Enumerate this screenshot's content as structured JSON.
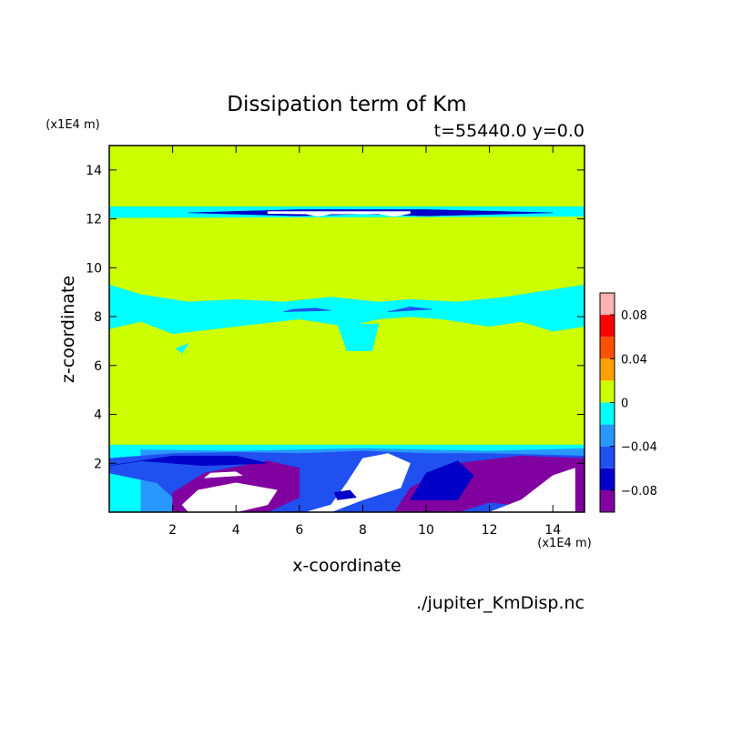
{
  "chart_data": {
    "type": "contour",
    "title": "Dissipation term of Km",
    "subtitle": "t=55440.0 y=0.0",
    "x_label": "x-coordinate",
    "y_label": "z-coordinate",
    "x_unit": "(x1E4 m)",
    "y_unit": "(x1E4 m)",
    "source": "./jupiter_KmDisp.nc",
    "xlim": [
      0,
      15
    ],
    "ylim": [
      0,
      15
    ],
    "xticks": [
      2,
      4,
      6,
      8,
      10,
      12,
      14
    ],
    "yticks": [
      2,
      4,
      6,
      8,
      10,
      12,
      14
    ],
    "colorbar": {
      "levels": [
        -0.1,
        -0.08,
        -0.06,
        -0.04,
        -0.02,
        0,
        0.02,
        0.04,
        0.06,
        0.08,
        0.1
      ],
      "colors": [
        "#8000a0",
        "#0000c8",
        "#2050f0",
        "#2898ff",
        "#00ffff",
        "#ccff00",
        "#ffa000",
        "#ff5000",
        "#ff0000",
        "#ffb0b0"
      ],
      "ticks": [
        {
          "value": -0.08,
          "label": "−0.08"
        },
        {
          "value": -0.04,
          "label": "−0.04"
        },
        0,
        0.04,
        0.08
      ]
    },
    "regions": [
      {
        "color": "#ccff00",
        "x": [
          0,
          15,
          15,
          0
        ],
        "z": [
          0,
          0,
          15,
          15
        ]
      },
      {
        "color": "#00ffff",
        "x": [
          0,
          15,
          15,
          0
        ],
        "z": [
          12.05,
          12.1,
          12.5,
          12.5
        ]
      },
      {
        "color": "#0000c8",
        "x": [
          2.5,
          6,
          8,
          10,
          14,
          10,
          8,
          6
        ],
        "z": [
          12.25,
          12.12,
          12.2,
          12.12,
          12.25,
          12.38,
          12.38,
          12.38
        ]
      },
      {
        "color": "#ffffff",
        "x": [
          5,
          6.2,
          6.6,
          7,
          8.5,
          9,
          9.5,
          9.5,
          5
        ],
        "z": [
          12.22,
          12.2,
          12.1,
          12.2,
          12.2,
          12.1,
          12.22,
          12.3,
          12.3
        ]
      },
      {
        "color": "#00ffff",
        "x": [
          0,
          1,
          2,
          4,
          6,
          7.5,
          8.5,
          9.5,
          10.5,
          12,
          13,
          14,
          15,
          15,
          14,
          12.5,
          11,
          9.5,
          8.5,
          7,
          5.5,
          4,
          2.5,
          1,
          0
        ],
        "z": [
          7.5,
          7.8,
          7.3,
          7.6,
          7.9,
          7.6,
          7.9,
          8.0,
          7.9,
          7.6,
          7.8,
          7.4,
          7.6,
          9.3,
          9.1,
          8.8,
          8.6,
          8.7,
          8.6,
          8.8,
          8.6,
          8.7,
          8.6,
          8.9,
          9.3
        ]
      },
      {
        "color": "#00ffff",
        "x": [
          7.2,
          8.5,
          8.3,
          7.5
        ],
        "z": [
          7.7,
          7.7,
          6.6,
          6.6
        ]
      },
      {
        "color": "#00ffff",
        "x": [
          2.1,
          2.5,
          2.3
        ],
        "z": [
          6.7,
          6.9,
          6.5
        ]
      },
      {
        "color": "#2050f0",
        "x": [
          5.5,
          7,
          6.5,
          5.8
        ],
        "z": [
          8.2,
          8.25,
          8.35,
          8.3
        ]
      },
      {
        "color": "#2050f0",
        "x": [
          8.8,
          10.2,
          9.5
        ],
        "z": [
          8.2,
          8.3,
          8.4
        ]
      },
      {
        "color": "#00ffff",
        "x": [
          0,
          15,
          15,
          0
        ],
        "z": [
          0,
          0,
          2.75,
          2.75
        ]
      },
      {
        "color": "#2898ff",
        "x": [
          1,
          4,
          8,
          12,
          15,
          15,
          12,
          8,
          4,
          1
        ],
        "z": [
          0,
          0,
          0,
          0,
          0,
          2.6,
          2.5,
          2.6,
          2.5,
          2.55
        ]
      },
      {
        "color": "#2050f0",
        "x": [
          0,
          1.5,
          2.5,
          15,
          15,
          12,
          10,
          8,
          6,
          4,
          2,
          0
        ],
        "z": [
          1.6,
          1.2,
          0,
          0,
          2.3,
          2.4,
          2.4,
          2.5,
          2.4,
          2.45,
          2.4,
          2.2
        ]
      },
      {
        "color": "#8000a0",
        "x": [
          2,
          5,
          6,
          6,
          5,
          3,
          2
        ],
        "z": [
          0,
          0,
          0.6,
          1.8,
          2.1,
          1.6,
          0.8
        ]
      },
      {
        "color": "#0000c8",
        "x": [
          0,
          2,
          4,
          5,
          3,
          1
        ],
        "z": [
          1.9,
          2.3,
          2.3,
          2.0,
          1.9,
          2.1
        ]
      },
      {
        "color": "#8000a0",
        "x": [
          9,
          11,
          12,
          15,
          15,
          13,
          11,
          9.5
        ],
        "z": [
          0,
          0,
          0.4,
          0,
          2.2,
          2.3,
          2.0,
          1.0
        ]
      },
      {
        "color": "#0000c8",
        "x": [
          9.5,
          11,
          11.5,
          11,
          10
        ],
        "z": [
          0.5,
          0.5,
          1.5,
          2.1,
          1.6
        ]
      },
      {
        "color": "#ffffff",
        "x": [
          2.5,
          4,
          5,
          5.3,
          4,
          2.8,
          2.3
        ],
        "z": [
          0,
          0,
          0.3,
          0.9,
          1.2,
          0.9,
          0.3
        ]
      },
      {
        "color": "#ffffff",
        "x": [
          6.2,
          7,
          7.5,
          8,
          8.8,
          9.5,
          9.2,
          8,
          7,
          6.5
        ],
        "z": [
          0,
          0.3,
          1.2,
          2.2,
          2.4,
          2.0,
          1.0,
          0.5,
          0,
          0
        ]
      },
      {
        "color": "#ffffff",
        "x": [
          12,
          13,
          14,
          14.7,
          14.7,
          12.5
        ],
        "z": [
          0,
          0.5,
          1.5,
          1.8,
          0,
          0
        ]
      },
      {
        "color": "#ffffff",
        "x": [
          3,
          4.2,
          4,
          3.2
        ],
        "z": [
          1.4,
          1.5,
          1.65,
          1.6
        ]
      },
      {
        "color": "#0000c8",
        "x": [
          7.2,
          7.8,
          7.6,
          7.1
        ],
        "z": [
          0.5,
          0.6,
          0.9,
          0.8
        ]
      }
    ]
  }
}
